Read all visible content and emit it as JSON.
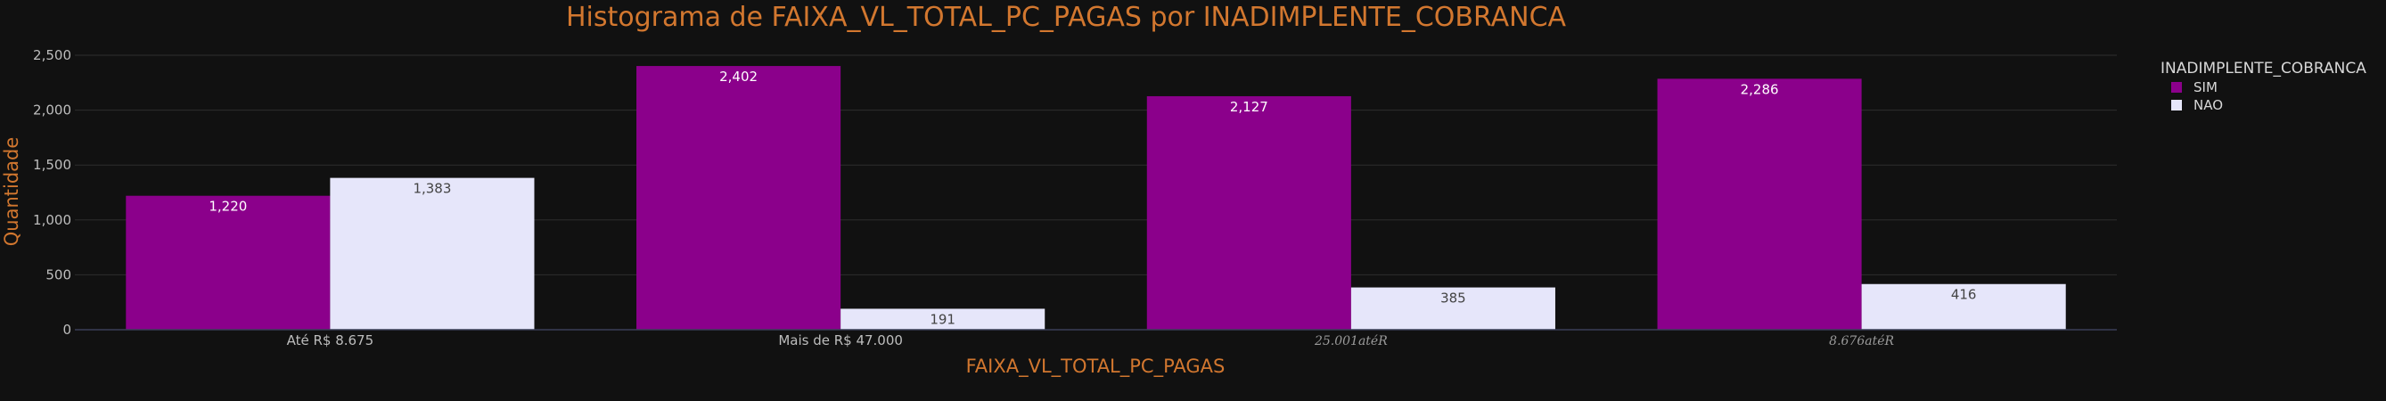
{
  "chart_data": {
    "type": "bar",
    "title": "Histograma de FAIXA_VL_TOTAL_PC_PAGAS por INADIMPLENTE_COBRANCA",
    "xlabel": "FAIXA_VL_TOTAL_PC_PAGAS",
    "ylabel": "Quantidade",
    "categories": [
      "Até R$ 8.675",
      "Mais de R$ 47.000",
      "25.001atéR",
      "8.676atéR"
    ],
    "ylim": [
      0,
      2500
    ],
    "yticks": [
      0,
      500,
      1000,
      1500,
      2000,
      2500
    ],
    "ytick_labels": [
      "0",
      "500",
      "1,000",
      "1,500",
      "2,000",
      "2,500"
    ],
    "grid": true,
    "legend_title": "INADIMPLENTE_COBRANCA",
    "legend_position": "top-right",
    "series": [
      {
        "name": "SIM",
        "color": "#8b008b",
        "label_color": "#ffffff",
        "values": [
          1220,
          2402,
          2127,
          2286
        ],
        "labels": [
          "1,220",
          "2,402",
          "2,127",
          "2,286"
        ]
      },
      {
        "name": "NAO",
        "color": "#e6e6fa",
        "label_color": "#444444",
        "values": [
          1383,
          191,
          385,
          416
        ],
        "labels": [
          "1,383",
          "191",
          "385",
          "416"
        ]
      }
    ]
  }
}
